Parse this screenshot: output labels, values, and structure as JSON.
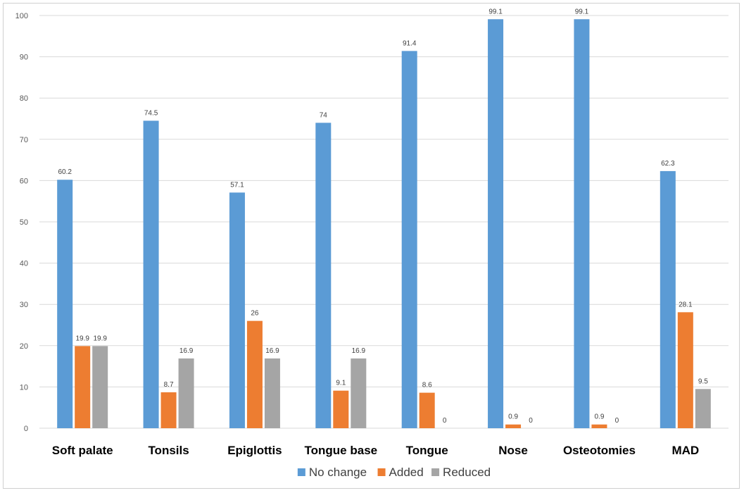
{
  "chart_data": {
    "type": "bar",
    "categories": [
      "Soft palate",
      "Tonsils",
      "Epiglottis",
      "Tongue base",
      "Tongue",
      "Nose",
      "Osteotomies",
      "MAD"
    ],
    "series": [
      {
        "name": "No change",
        "color": "#5b9bd5",
        "values": [
          60.2,
          74.5,
          57.1,
          74,
          91.4,
          99.1,
          99.1,
          62.3
        ],
        "labels": [
          "60.2",
          "74.5",
          "57.1",
          "74",
          "91.4",
          "99.1",
          "99.1",
          "62.3"
        ]
      },
      {
        "name": "Added",
        "color": "#ed7d31",
        "values": [
          19.9,
          8.7,
          26,
          9.1,
          8.6,
          0.9,
          0.9,
          28.1
        ],
        "labels": [
          "19.9",
          "8.7",
          "26",
          "9.1",
          "8.6",
          "0.9",
          "0.9",
          "28.1"
        ]
      },
      {
        "name": "Reduced",
        "color": "#a5a5a5",
        "values": [
          19.9,
          16.9,
          16.9,
          16.9,
          0,
          0,
          0,
          9.5
        ],
        "labels": [
          "19.9",
          "16.9",
          "16.9",
          "16.9",
          "0",
          "0",
          "0",
          "9.5"
        ]
      }
    ],
    "yticks": [
      "0",
      "10",
      "20",
      "30",
      "40",
      "50",
      "60",
      "70",
      "80",
      "90",
      "100"
    ],
    "ylim": [
      0,
      100
    ],
    "grid": true,
    "legend_position": "bottom",
    "title": "",
    "xlabel": "",
    "ylabel": ""
  }
}
